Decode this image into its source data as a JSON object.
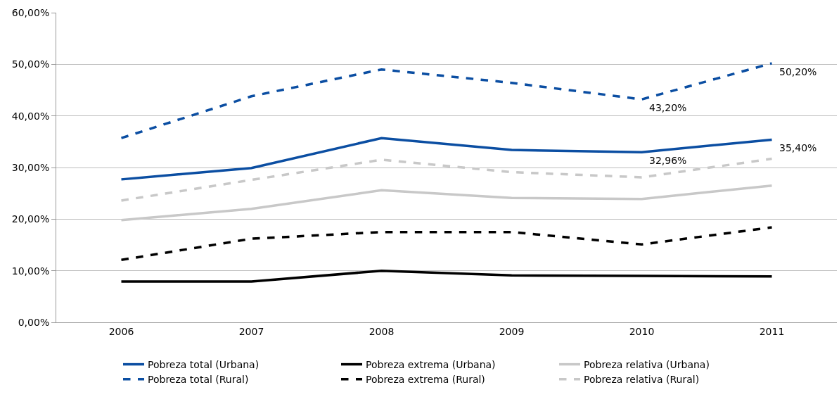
{
  "chart_data": {
    "type": "line",
    "categories": [
      "2006",
      "2007",
      "2008",
      "2009",
      "2010",
      "2011"
    ],
    "series": [
      {
        "name": "Pobreza total (Urbana)",
        "color": "#0b4ea2",
        "line_style": "solid",
        "values": [
          27.7,
          29.9,
          35.7,
          33.4,
          32.96,
          35.4
        ]
      },
      {
        "name": "Pobreza extrema (Urbana)",
        "color": "#000000",
        "line_style": "solid",
        "values": [
          7.9,
          7.9,
          10.0,
          9.1,
          9.0,
          8.9
        ]
      },
      {
        "name": "Pobreza relativa (Urbana)",
        "color": "#c8c8c8",
        "line_style": "solid",
        "values": [
          19.8,
          22.0,
          25.6,
          24.1,
          23.9,
          26.5
        ]
      },
      {
        "name": "Pobreza total (Rural)",
        "color": "#0b4ea2",
        "line_style": "dashed",
        "values": [
          35.7,
          43.8,
          49.0,
          46.4,
          43.2,
          50.2
        ]
      },
      {
        "name": "Pobreza extrema (Rural)",
        "color": "#000000",
        "line_style": "dashed",
        "values": [
          12.1,
          16.2,
          17.5,
          17.5,
          15.1,
          18.4
        ]
      },
      {
        "name": "Pobreza relativa (Rural)",
        "color": "#c8c8c8",
        "line_style": "dashed",
        "values": [
          23.6,
          27.6,
          31.5,
          29.1,
          28.1,
          31.7
        ]
      }
    ],
    "ylim": [
      0,
      60
    ],
    "yticks": [
      {
        "value": 0,
        "label": "0,00%"
      },
      {
        "value": 10,
        "label": "10,00%"
      },
      {
        "value": 20,
        "label": "20,00%"
      },
      {
        "value": 30,
        "label": "30,00%"
      },
      {
        "value": 40,
        "label": "40,00%"
      },
      {
        "value": 50,
        "label": "50,00%"
      },
      {
        "value": 60,
        "label": "60,00%"
      }
    ],
    "annotations": [
      {
        "text": "50,20%",
        "x": "2011",
        "y": 50.2
      },
      {
        "text": "43,20%",
        "x": "2010",
        "y": 43.2
      },
      {
        "text": "35,40%",
        "x": "2011",
        "y": 35.4
      },
      {
        "text": "32,96%",
        "x": "2010",
        "y": 32.96
      }
    ],
    "grid": "y",
    "legend": "bottom",
    "marker": "none"
  }
}
